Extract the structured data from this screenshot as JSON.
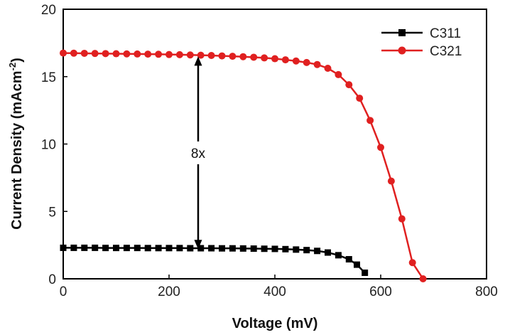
{
  "chart_data": {
    "type": "line",
    "xlabel": "Voltage (mV)",
    "ylabel": "Current Density (mAcm",
    "ylabel_sup": "-2",
    "ylabel_close": ")",
    "xlim": [
      0,
      800
    ],
    "ylim": [
      0,
      20
    ],
    "x_ticks": [
      "0",
      "200",
      "400",
      "600",
      "800"
    ],
    "y_ticks": [
      "0",
      "5",
      "10",
      "15",
      "20"
    ],
    "grid": false,
    "legend_position": "top-right",
    "annotation": {
      "label": "8x",
      "x": 255,
      "y_top": 16.5,
      "y_bottom": 2.2
    },
    "series": [
      {
        "name": "C311",
        "color": "#000000",
        "marker": "square",
        "x": [
          0,
          20,
          40,
          60,
          80,
          100,
          120,
          140,
          160,
          180,
          200,
          220,
          240,
          260,
          280,
          300,
          320,
          340,
          360,
          380,
          400,
          420,
          440,
          460,
          480,
          500,
          520,
          540,
          555,
          570
        ],
        "y": [
          2.3,
          2.3,
          2.3,
          2.3,
          2.29,
          2.29,
          2.29,
          2.29,
          2.28,
          2.28,
          2.28,
          2.28,
          2.27,
          2.27,
          2.27,
          2.26,
          2.26,
          2.25,
          2.24,
          2.23,
          2.22,
          2.2,
          2.17,
          2.13,
          2.07,
          1.95,
          1.75,
          1.45,
          1.05,
          0.45
        ]
      },
      {
        "name": "C321",
        "color": "#e02020",
        "marker": "circle",
        "x": [
          0,
          20,
          40,
          60,
          80,
          100,
          120,
          140,
          160,
          180,
          200,
          220,
          240,
          260,
          280,
          300,
          320,
          340,
          360,
          380,
          400,
          420,
          440,
          460,
          480,
          500,
          520,
          540,
          560,
          580,
          600,
          620,
          640,
          660,
          680
        ],
        "y": [
          16.75,
          16.74,
          16.73,
          16.72,
          16.71,
          16.7,
          16.69,
          16.68,
          16.67,
          16.66,
          16.64,
          16.63,
          16.61,
          16.59,
          16.57,
          16.54,
          16.51,
          16.48,
          16.44,
          16.39,
          16.33,
          16.25,
          16.16,
          16.05,
          15.9,
          15.62,
          15.15,
          14.4,
          13.4,
          11.75,
          9.75,
          7.25,
          4.45,
          1.2,
          0.0
        ]
      }
    ]
  }
}
